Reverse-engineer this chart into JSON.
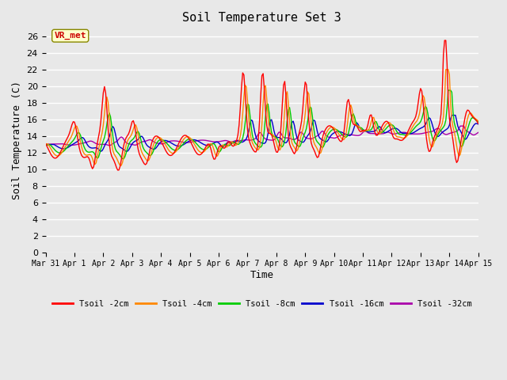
{
  "title": "Soil Temperature Set 3",
  "xlabel": "Time",
  "ylabel": "Soil Temperature (C)",
  "ylim": [
    0,
    27
  ],
  "yticks": [
    0,
    2,
    4,
    6,
    8,
    10,
    12,
    14,
    16,
    18,
    20,
    22,
    24,
    26
  ],
  "plot_bg_color": "#e8e8e8",
  "annotation_label": "VR_met",
  "annotation_color": "#cc0000",
  "annotation_bg": "#ffffcc",
  "line_colors": {
    "Tsoil -2cm": "#ff0000",
    "Tsoil -4cm": "#ff8800",
    "Tsoil -8cm": "#00cc00",
    "Tsoil -16cm": "#0000cc",
    "Tsoil -32cm": "#aa00aa"
  },
  "legend_labels": [
    "Tsoil -2cm",
    "Tsoil -4cm",
    "Tsoil -8cm",
    "Tsoil -16cm",
    "Tsoil -32cm"
  ],
  "xtick_labels": [
    "Mar 31",
    "Apr 1",
    "Apr 2",
    "Apr 3",
    "Apr 4",
    "Apr 5",
    "Apr 6",
    "Apr 7",
    "Apr 8",
    "Apr 9",
    "Apr 10",
    "Apr 11",
    "Apr 12",
    "Apr 13",
    "Apr 14",
    "Apr 15"
  ]
}
